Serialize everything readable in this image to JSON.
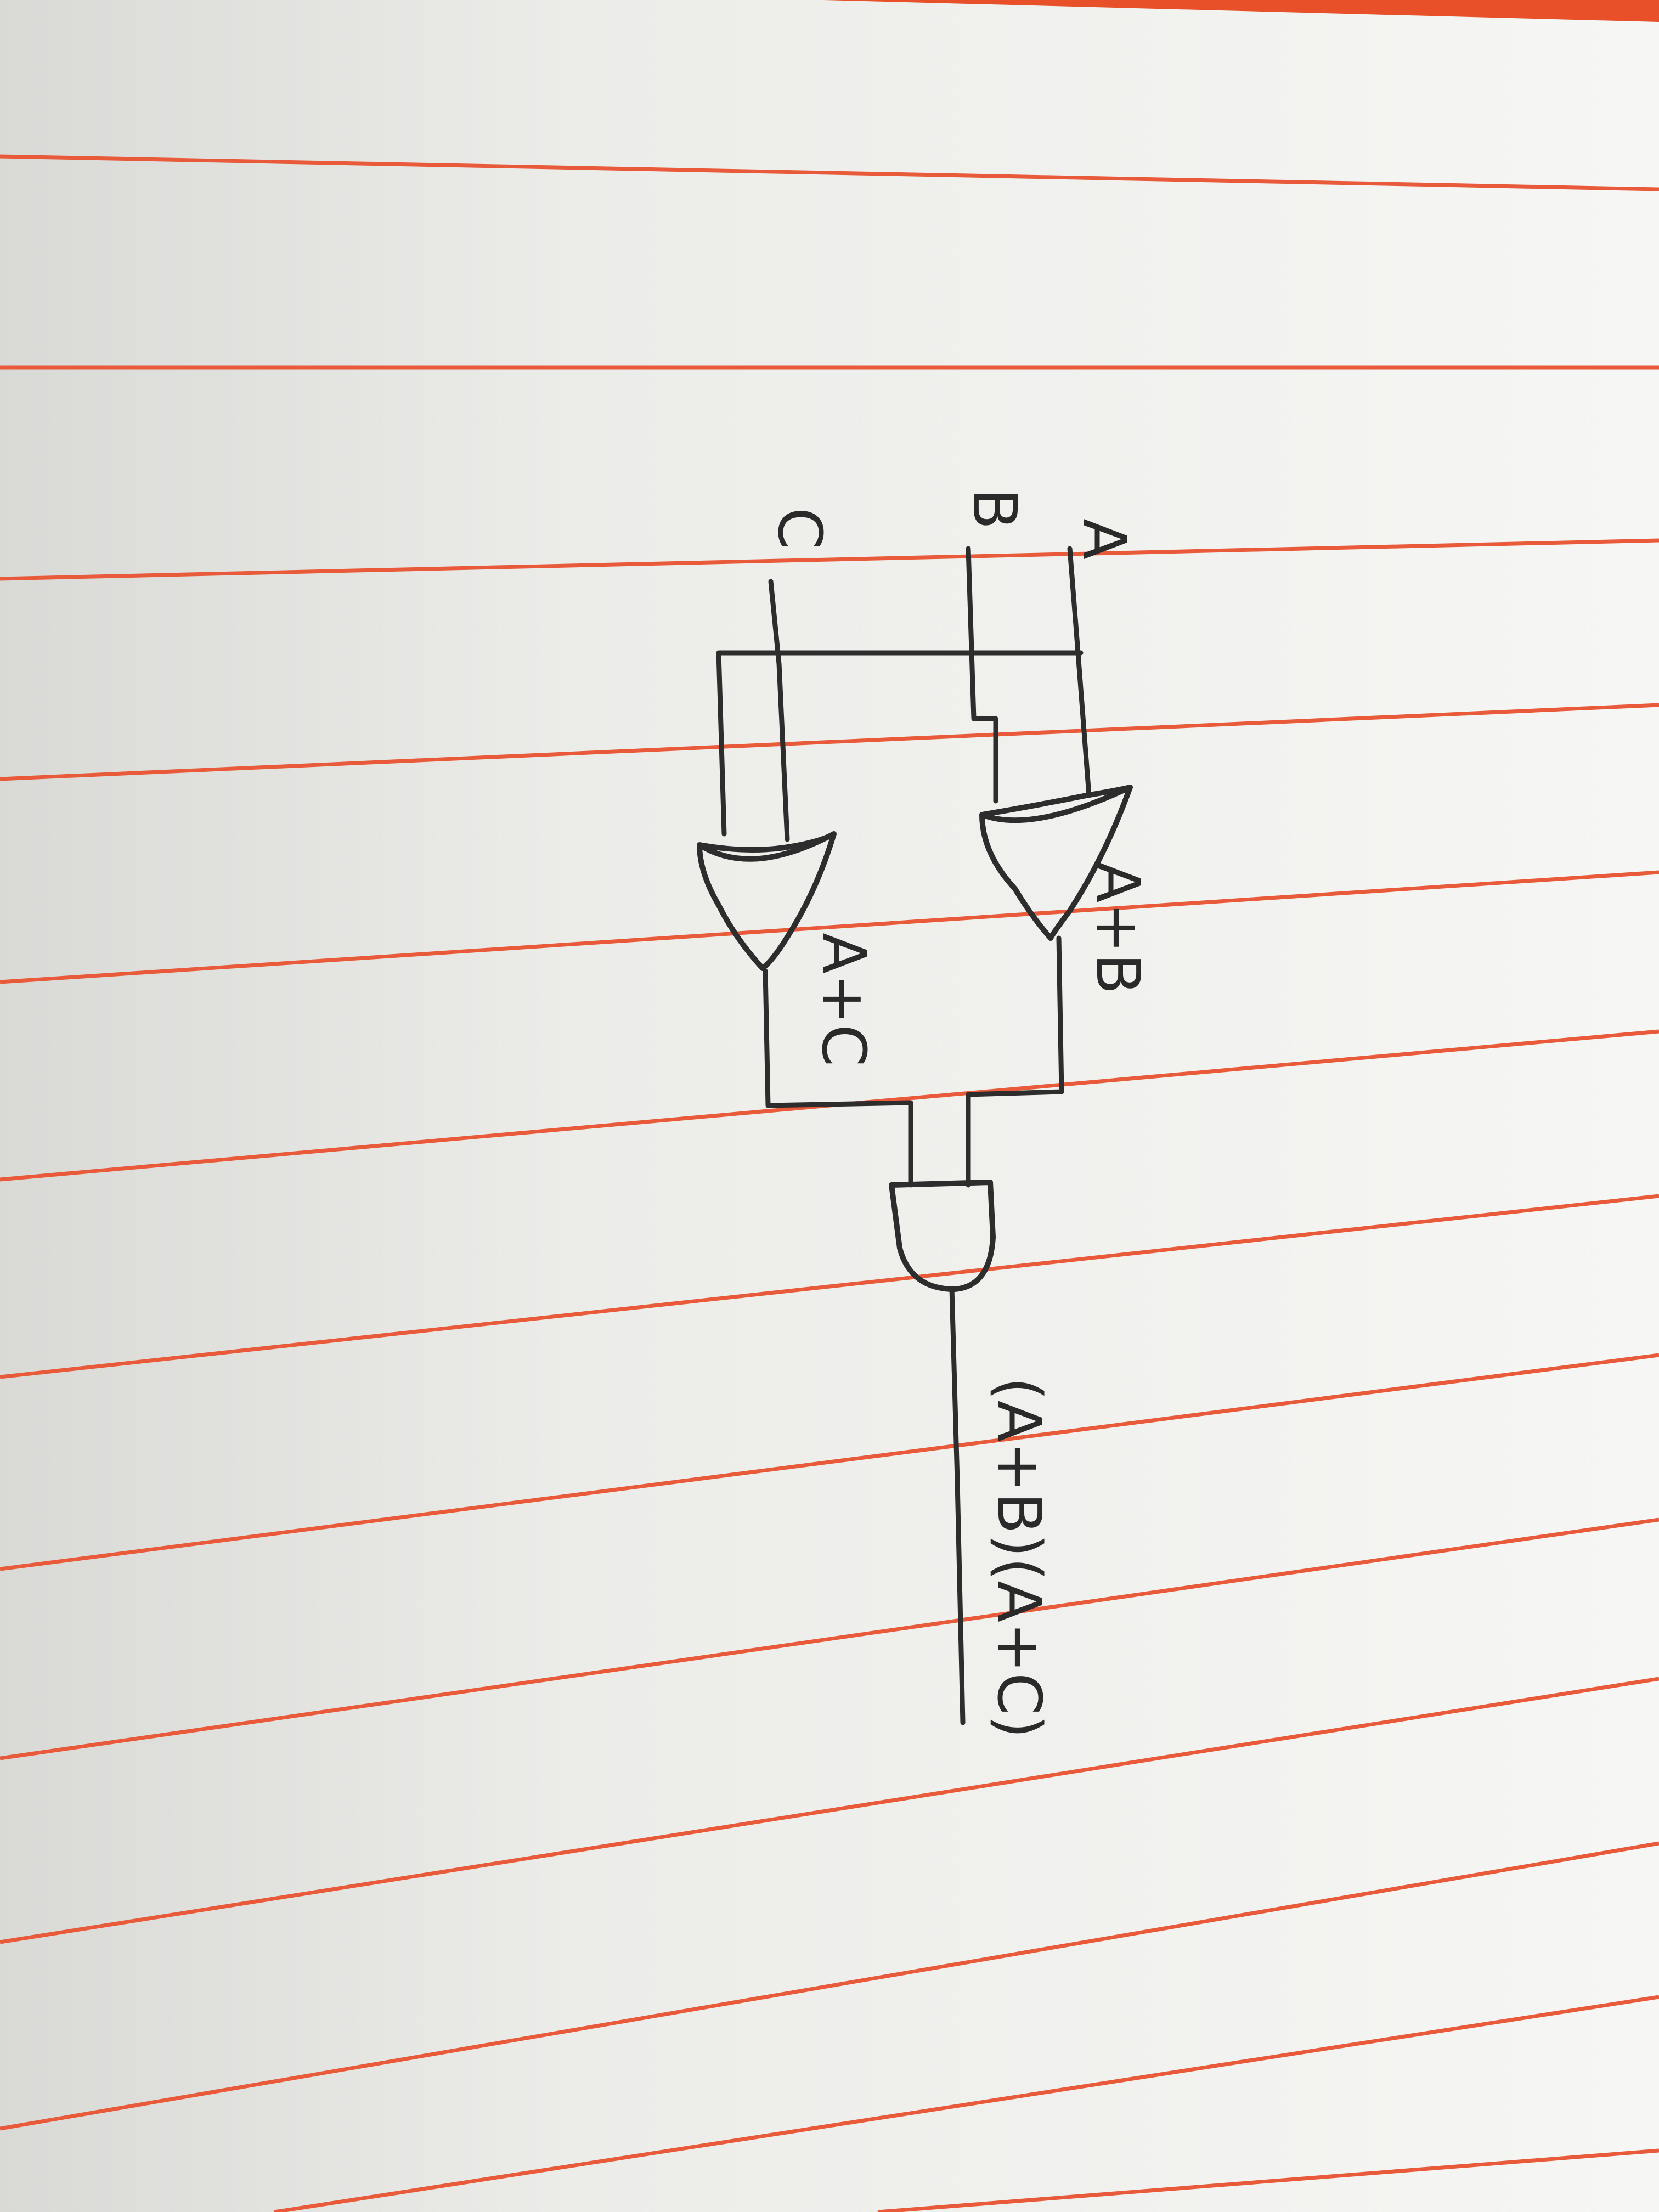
{
  "diagram": {
    "inputs": {
      "a": "A",
      "b": "B",
      "c": "C"
    },
    "gates": {
      "or_top": {
        "type": "OR",
        "output_label": "A+B"
      },
      "or_bottom": {
        "type": "OR",
        "output_label": "A+C"
      },
      "and": {
        "type": "AND"
      }
    },
    "output_label": "(A+B)(A+C)"
  },
  "colors": {
    "paper": "#f1f1ef",
    "ruled_line": "#e85a3a",
    "ink": "#2d2d2d",
    "top_margin_band": "#e8502a"
  }
}
